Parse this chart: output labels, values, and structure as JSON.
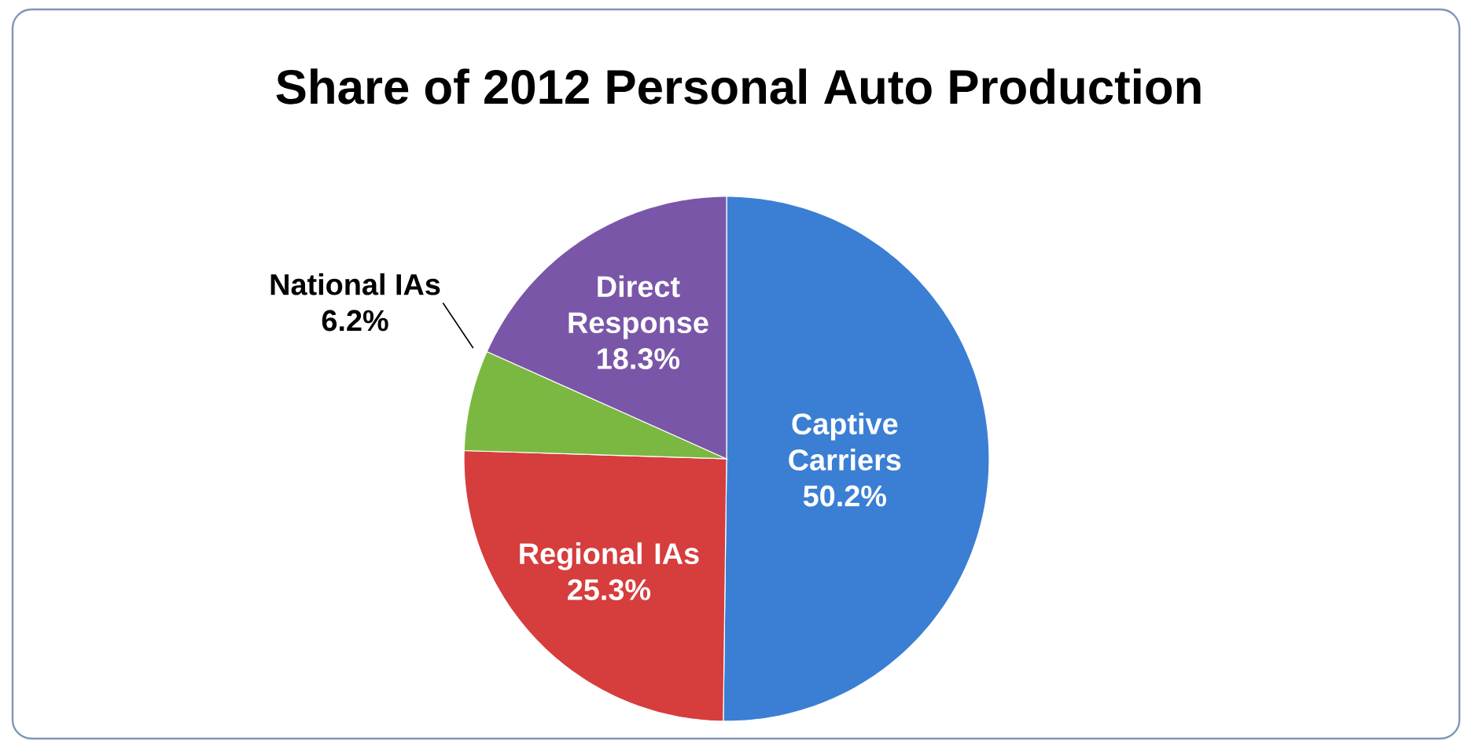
{
  "chart_data": {
    "type": "pie",
    "title": "Share of 2012 Personal Auto Production",
    "categories": [
      "Captive Carriers",
      "Regional IAs",
      "National  IAs",
      "Direct Response"
    ],
    "values": [
      50.2,
      25.3,
      6.2,
      18.3
    ],
    "colors": [
      "#3b7fd4",
      "#d63d3d",
      "#7bb841",
      "#7a56a8"
    ],
    "value_labels": [
      "50.2%",
      "25.3%",
      "6.2%",
      "18.3%"
    ]
  }
}
